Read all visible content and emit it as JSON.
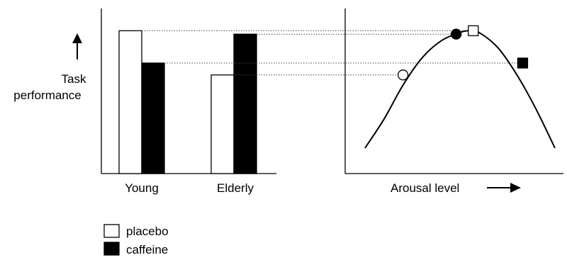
{
  "chart_data": [
    {
      "type": "bar",
      "ylabel": "Task performance",
      "categories": [
        "Young",
        "Elderly"
      ],
      "series": [
        {
          "name": "placebo",
          "color": "#ffffff",
          "values": [
            0.84,
            0.58
          ]
        },
        {
          "name": "caffeine",
          "color": "#000000",
          "values": [
            0.65,
            0.82
          ]
        }
      ],
      "ylim": [
        0,
        1
      ],
      "legend": "bottom-left",
      "grid": false
    },
    {
      "type": "line",
      "xlabel": "Arousal level",
      "ylabel": "Task performance",
      "xlim": [
        0,
        1
      ],
      "ylim": [
        0,
        1
      ],
      "curve": {
        "x": [
          0.0,
          0.1,
          0.2,
          0.3,
          0.4,
          0.5,
          0.55,
          0.6,
          0.7,
          0.8,
          0.9,
          1.0
        ],
        "y": [
          0.15,
          0.32,
          0.52,
          0.68,
          0.78,
          0.83,
          0.84,
          0.83,
          0.74,
          0.58,
          0.38,
          0.15
        ]
      },
      "points": [
        {
          "group": "Young",
          "series": "placebo",
          "marker": "square",
          "fill": "open",
          "x": 0.57,
          "y": 0.84
        },
        {
          "group": "Young",
          "series": "caffeine",
          "marker": "square",
          "fill": "filled",
          "x": 0.83,
          "y": 0.65
        },
        {
          "group": "Elderly",
          "series": "placebo",
          "marker": "circle",
          "fill": "open",
          "x": 0.2,
          "y": 0.58
        },
        {
          "group": "Elderly",
          "series": "caffeine",
          "marker": "circle",
          "fill": "filled",
          "x": 0.48,
          "y": 0.82
        }
      ],
      "grid": false
    }
  ],
  "labels": {
    "y_line1": "Task",
    "y_line2": "performance",
    "x_young": "Young",
    "x_elderly": "Elderly",
    "x_arousal": "Arousal level"
  },
  "legend": [
    {
      "label": "placebo",
      "fill": "#ffffff"
    },
    {
      "label": "caffeine",
      "fill": "#000000"
    }
  ]
}
